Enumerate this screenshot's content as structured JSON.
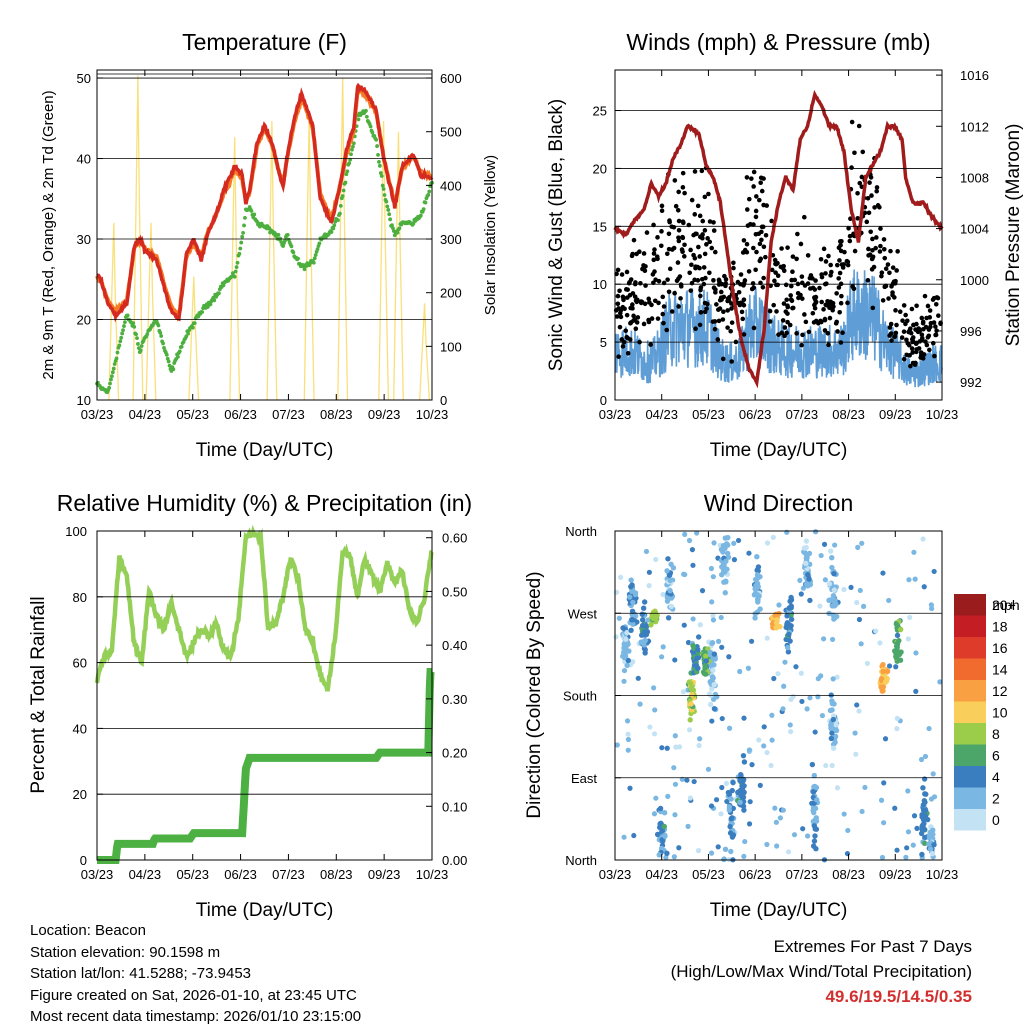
{
  "x_ticks": [
    "03/23",
    "04/23",
    "05/23",
    "06/23",
    "07/23",
    "08/23",
    "09/23",
    "10/23"
  ],
  "colors": {
    "temp2m": "#d42a20",
    "temp9m": "#f57b24",
    "dewpoint": "#4caf3e",
    "solar": "#f9e07a",
    "pressure": "#a01c1c",
    "sonic": "#5f9dd6",
    "gust": "#000000",
    "rh": "#94cf58",
    "precip": "#4cb043"
  },
  "chart_data": [
    {
      "type": "line",
      "title": "Temperature (F)",
      "xlabel": "Time (Day/UTC)",
      "ylabel": "2m & 9m T (Red, Orange) & 2m Td (Green)",
      "y2label": "Solar Insolation (Yellow)",
      "ylim": [
        10,
        51
      ],
      "y2lim": [
        0,
        615
      ],
      "yticks": [
        10,
        20,
        30,
        40,
        50
      ],
      "y2ticks": [
        0,
        100,
        200,
        300,
        400,
        500,
        600
      ],
      "x": [
        0,
        0.1,
        0.3,
        0.5,
        0.8,
        1,
        1.15,
        1.3,
        1.6,
        1.8,
        2,
        2.2,
        2.4,
        2.6,
        2.8,
        3,
        3.2,
        3.4,
        3.7,
        3.9,
        4,
        4.1,
        4.3,
        4.5,
        4.7,
        4.9,
        5,
        5.1,
        5.3,
        5.5,
        5.8,
        6,
        6.3,
        6.5,
        6.7,
        6.9,
        7,
        7.2,
        7.5,
        7.7,
        7.9,
        8,
        8.2,
        8.5,
        8.7,
        9
      ],
      "series": [
        {
          "name": "2m T",
          "values": [
            25.5,
            25,
            22,
            20.5,
            22,
            29,
            30,
            28.5,
            27.5,
            24,
            21,
            20,
            28,
            30,
            27.5,
            31,
            33,
            36,
            39,
            38,
            34.5,
            36,
            42,
            44,
            42,
            38,
            36.5,
            40,
            45,
            48,
            44,
            35,
            32,
            36,
            41,
            44,
            49,
            48.5,
            46,
            40,
            36,
            34,
            39,
            40.5,
            38,
            37.5
          ]
        },
        {
          "name": "9m T",
          "values": [
            25.3,
            24.8,
            22.3,
            21,
            22.3,
            28.8,
            29.8,
            28.8,
            27.8,
            24.5,
            21.5,
            20.5,
            27.8,
            29.5,
            27.8,
            31.2,
            33,
            35.5,
            38.5,
            37.5,
            34.5,
            35.8,
            41.5,
            43.5,
            41.8,
            38.2,
            36.8,
            39.8,
            44.5,
            47.5,
            43.8,
            35.5,
            32.5,
            36,
            40.5,
            43.5,
            48.5,
            48,
            45.8,
            40.2,
            36.2,
            34.3,
            38.8,
            40.2,
            38.2,
            37.8
          ]
        },
        {
          "name": "2m Td",
          "values": [
            12,
            11.5,
            11,
            15,
            20.5,
            19,
            16,
            18,
            20,
            16.5,
            13.5,
            16,
            18,
            19.5,
            21,
            22,
            23,
            24.5,
            25.5,
            30,
            33.5,
            34,
            32,
            31.5,
            31,
            30,
            29,
            30.5,
            28,
            26.5,
            27,
            30,
            31,
            33,
            38,
            42,
            45,
            46,
            42,
            36,
            32,
            30.5,
            32,
            32,
            33,
            37
          ]
        },
        {
          "name": "Solar",
          "axis": "y2",
          "peak_x": [
            0.45,
            1.1,
            1.45,
            2.6,
            3.7,
            4.7,
            5.7,
            6.6,
            7.7,
            8.1,
            8.8
          ],
          "peak_values": [
            330,
            605,
            330,
            230,
            490,
            520,
            530,
            600,
            520,
            500,
            180
          ]
        }
      ]
    },
    {
      "type": "scatter",
      "title": "Winds (mph) & Pressure (mb)",
      "xlabel": "Time (Day/UTC)",
      "ylabel": "Sonic Wind & Gust (Blue, Black)",
      "y2label": "Station Pressure (Maroon)",
      "ylim": [
        0,
        28.5
      ],
      "y2lim": [
        990.6,
        1016.4
      ],
      "yticks": [
        0,
        5,
        10,
        15,
        20,
        25
      ],
      "y2ticks": [
        992,
        996,
        1000,
        1004,
        1008,
        1012,
        1016
      ],
      "gridlines": [
        5,
        10,
        15,
        20,
        25
      ],
      "pressure": {
        "x": [
          0,
          0.3,
          0.5,
          0.8,
          1,
          1.2,
          1.4,
          1.6,
          1.8,
          2,
          2.3,
          2.5,
          2.7,
          2.9,
          3.1,
          3.3,
          3.5,
          3.7,
          3.9,
          4.1,
          4.3,
          4.5,
          4.7,
          4.9,
          5.1,
          5.3,
          5.5,
          5.7,
          5.9,
          6.1,
          6.3,
          6.5,
          6.7,
          6.9,
          7.1,
          7.3,
          7.5,
          7.7,
          7.9,
          8,
          8.2,
          8.5,
          8.7,
          9
        ],
        "values": [
          1004,
          1003.5,
          1004.5,
          1005.5,
          1007.5,
          1006.5,
          1007.5,
          1009.5,
          1010.5,
          1012,
          1011.5,
          1009,
          1008,
          1006,
          1002,
          998,
          995,
          993,
          992,
          996,
          1003,
          1006,
          1008,
          1007,
          1011,
          1012,
          1014.5,
          1013.5,
          1012,
          1012,
          1010,
          1005.5,
          1003,
          1008,
          1009,
          1010,
          1012,
          1012,
          1011,
          1008,
          1006,
          1006,
          1005,
          1004
        ]
      },
      "wind_centers": [
        [
          0.3,
          4,
          8
        ],
        [
          1,
          3,
          10
        ],
        [
          1.6,
          6,
          14
        ],
        [
          2.4,
          6,
          13
        ],
        [
          3.1,
          3,
          8
        ],
        [
          4,
          6,
          15
        ],
        [
          4.5,
          4,
          9
        ],
        [
          5.3,
          4,
          10
        ],
        [
          5.8,
          4,
          9
        ],
        [
          7,
          7,
          16
        ],
        [
          7.6,
          4,
          9
        ],
        [
          8.2,
          2,
          5
        ],
        [
          8.8,
          3,
          7
        ]
      ]
    },
    {
      "type": "line",
      "title": "Relative Humidity (%) & Precipitation (in)",
      "xlabel": "Time (Day/UTC)",
      "ylabel": "Percent & Total Rainfall",
      "ylim": [
        0,
        100
      ],
      "y2lim": [
        0,
        0.6125
      ],
      "yticks": [
        0,
        20,
        40,
        60,
        80,
        100
      ],
      "y2ticks": [
        "0.00",
        "0.10",
        "0.20",
        "0.30",
        "0.40",
        "0.50",
        "0.60"
      ],
      "gridlines": [
        20,
        40,
        60,
        80
      ],
      "series": [
        {
          "name": "Relative Humidity",
          "x": [
            0,
            0.2,
            0.4,
            0.6,
            0.8,
            1,
            1.2,
            1.4,
            1.6,
            1.8,
            2,
            2.2,
            2.4,
            2.6,
            2.8,
            3,
            3.2,
            3.4,
            3.6,
            3.8,
            4,
            4.2,
            4.4,
            4.6,
            4.8,
            5,
            5.2,
            5.4,
            5.6,
            5.8,
            6,
            6.2,
            6.4,
            6.6,
            6.8,
            7,
            7.2,
            7.4,
            7.6,
            7.8,
            8,
            8.2,
            8.4,
            8.6,
            8.8,
            9
          ],
          "values": [
            55,
            62,
            64,
            92,
            86,
            66,
            60,
            82,
            74,
            70,
            78,
            70,
            62,
            66,
            70,
            68,
            72,
            64,
            62,
            74,
            98,
            99,
            98,
            70,
            72,
            80,
            92,
            86,
            70,
            66,
            56,
            52,
            68,
            94,
            92,
            80,
            92,
            86,
            82,
            90,
            84,
            88,
            76,
            72,
            80,
            95
          ]
        },
        {
          "name": "Total Precipitation",
          "axis": "y2",
          "x": [
            0,
            0.3,
            0.5,
            0.55,
            1,
            1.5,
            1.55,
            2,
            2.5,
            2.6,
            3,
            3.5,
            3.9,
            4,
            4.1,
            4.4,
            5,
            6,
            7,
            7.5,
            7.6,
            8,
            8.5,
            8.9,
            8.95,
            9
          ],
          "values": [
            0,
            0,
            0,
            0.03,
            0.03,
            0.03,
            0.04,
            0.04,
            0.04,
            0.05,
            0.05,
            0.05,
            0.05,
            0.17,
            0.19,
            0.19,
            0.19,
            0.19,
            0.19,
            0.19,
            0.2,
            0.2,
            0.2,
            0.2,
            0.35,
            0.35
          ]
        }
      ]
    },
    {
      "type": "scatter",
      "title": "Wind Direction",
      "xlabel": "Time (Day/UTC)",
      "ylabel": "Direction (Colored By Speed)",
      "yticks": [
        "North",
        "East",
        "South",
        "West",
        "North"
      ],
      "ylim": [
        0,
        360
      ],
      "colorbar_title": "mph",
      "colorbar_labels": [
        "20+",
        "18",
        "16",
        "14",
        "12",
        "10",
        "8",
        "6",
        "4",
        "2",
        "0"
      ],
      "colorbar_colors": [
        "#9b1c1c",
        "#c41e24",
        "#de3b2a",
        "#f26b2e",
        "#f9a043",
        "#f9ce5a",
        "#9ccd4a",
        "#4ca66a",
        "#3b7ec0",
        "#7ab7e2",
        "#c3e3f5"
      ],
      "clusters": [
        [
          0.3,
          235,
          30,
          2
        ],
        [
          0.5,
          280,
          40,
          3
        ],
        [
          0.8,
          250,
          40,
          4
        ],
        [
          1.1,
          265,
          10,
          8
        ],
        [
          1.3,
          30,
          30,
          3
        ],
        [
          1.5,
          300,
          40,
          2
        ],
        [
          2.1,
          180,
          30,
          8
        ],
        [
          2.2,
          220,
          25,
          5
        ],
        [
          2.5,
          220,
          20,
          6
        ],
        [
          2.7,
          200,
          60,
          2
        ],
        [
          3,
          330,
          40,
          2
        ],
        [
          3.2,
          50,
          40,
          3
        ],
        [
          3.5,
          80,
          40,
          4
        ],
        [
          3.9,
          300,
          40,
          2
        ],
        [
          4.4,
          265,
          15,
          11
        ],
        [
          4.8,
          260,
          40,
          4
        ],
        [
          5.3,
          320,
          40,
          2
        ],
        [
          5.5,
          60,
          60,
          3
        ],
        [
          6,
          300,
          40,
          2
        ],
        [
          6,
          150,
          40,
          2
        ],
        [
          7.4,
          200,
          18,
          11
        ],
        [
          7.8,
          240,
          40,
          6
        ],
        [
          8.5,
          50,
          40,
          4
        ],
        [
          8.7,
          20,
          20,
          2
        ]
      ]
    }
  ],
  "info": {
    "location": "Location: Beacon",
    "elevation": "Station elevation: 90.1598 m",
    "latlon": "Station lat/lon: 41.5288; -73.9453",
    "created": "Figure created on Sat, 2026-01-10, at 23:45 UTC",
    "recent": "Most recent data timestamp: 2026/01/10 23:15:00"
  },
  "extremes": {
    "title": "Extremes For Past 7 Days",
    "subtitle": "(High/Low/Max Wind/Total Precipitation)",
    "values": "49.6/19.5/14.5/0.35"
  }
}
